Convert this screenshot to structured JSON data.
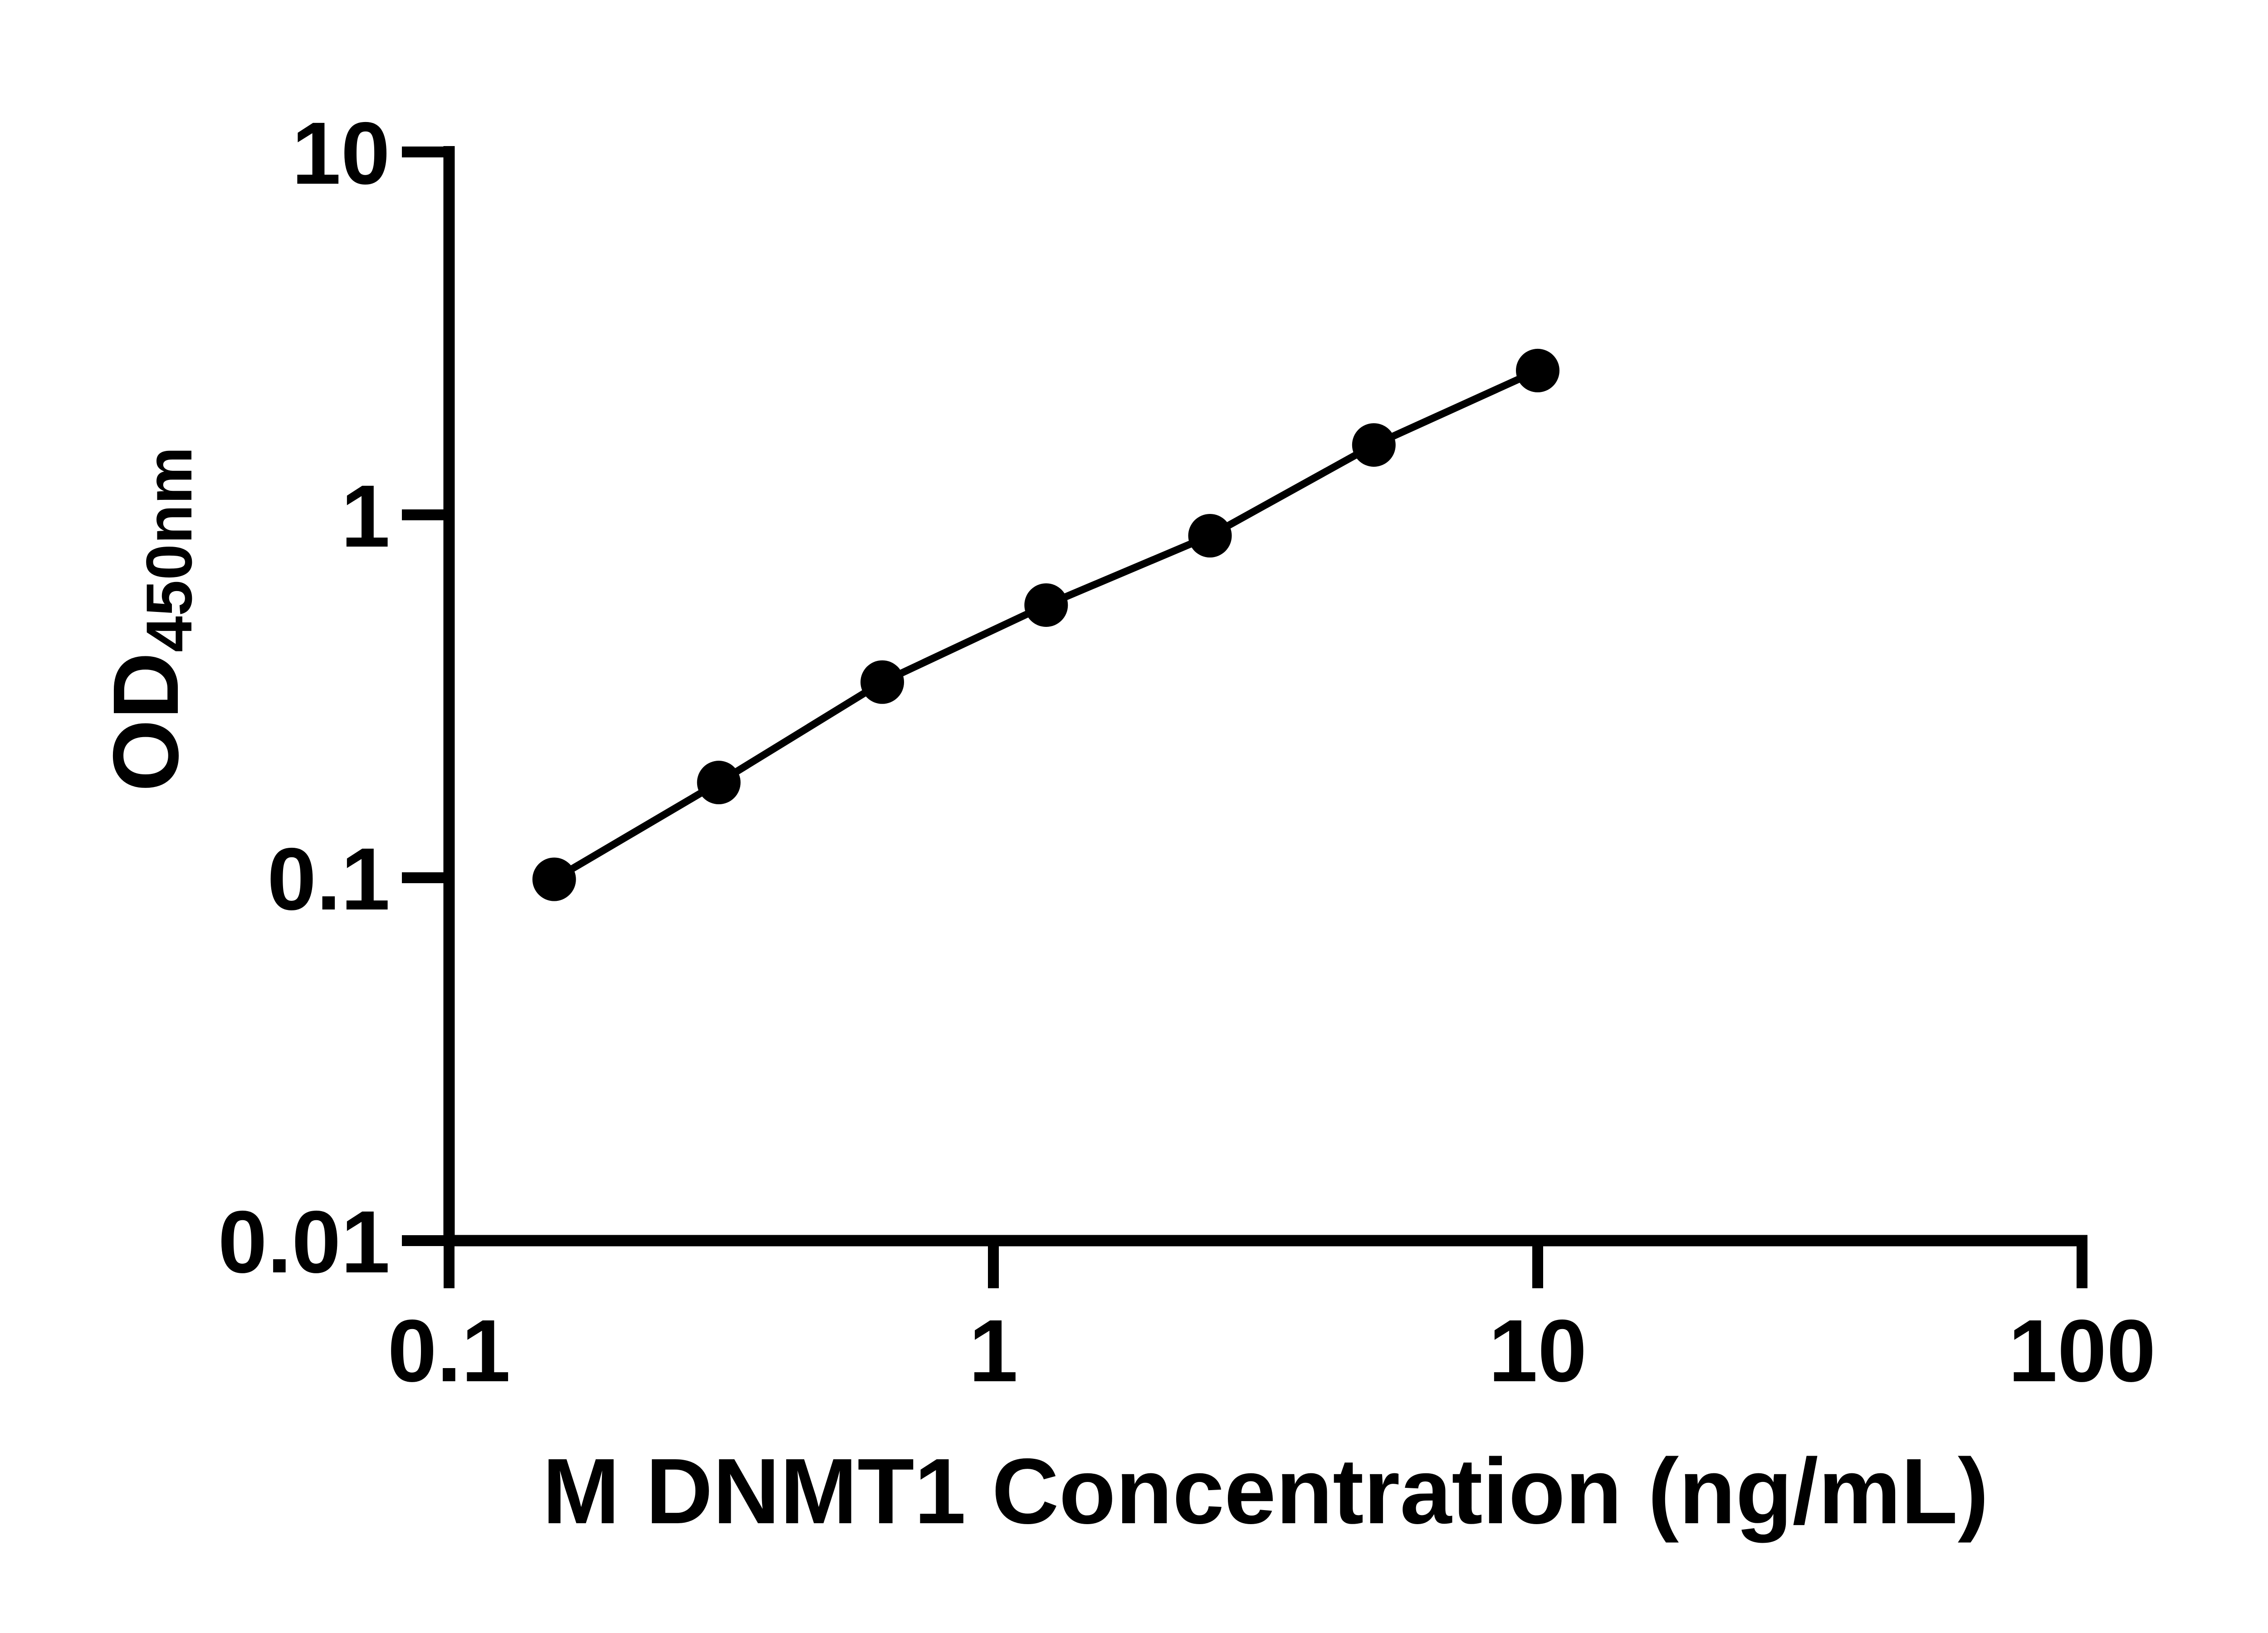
{
  "figure": {
    "background_color": "#ffffff",
    "ink_color": "#000000",
    "kind": "ELISA standard curve plot"
  },
  "chart_data": {
    "type": "line",
    "title": "",
    "xlabel": "M DNMT1 Concentration (ng/mL)",
    "ylabel_main": "OD",
    "ylabel_sub": "450nm",
    "x_scale": "log",
    "y_scale": "log",
    "xlim": [
      0.1,
      100
    ],
    "ylim": [
      0.01,
      10
    ],
    "x_ticks": [
      0.1,
      1,
      10,
      100
    ],
    "x_tick_labels": [
      "0.1",
      "1",
      "10",
      "100"
    ],
    "y_ticks": [
      0.01,
      0.1,
      1,
      10
    ],
    "y_tick_labels": [
      "0.01",
      "0.1",
      "1",
      "10"
    ],
    "grid": false,
    "legend": false,
    "series": [
      {
        "marker": "circle",
        "color": "#000000",
        "x": [
          0.156,
          0.313,
          0.625,
          1.25,
          2.5,
          5,
          10
        ],
        "y": [
          0.099,
          0.183,
          0.346,
          0.564,
          0.876,
          1.558,
          2.498
        ]
      }
    ]
  }
}
